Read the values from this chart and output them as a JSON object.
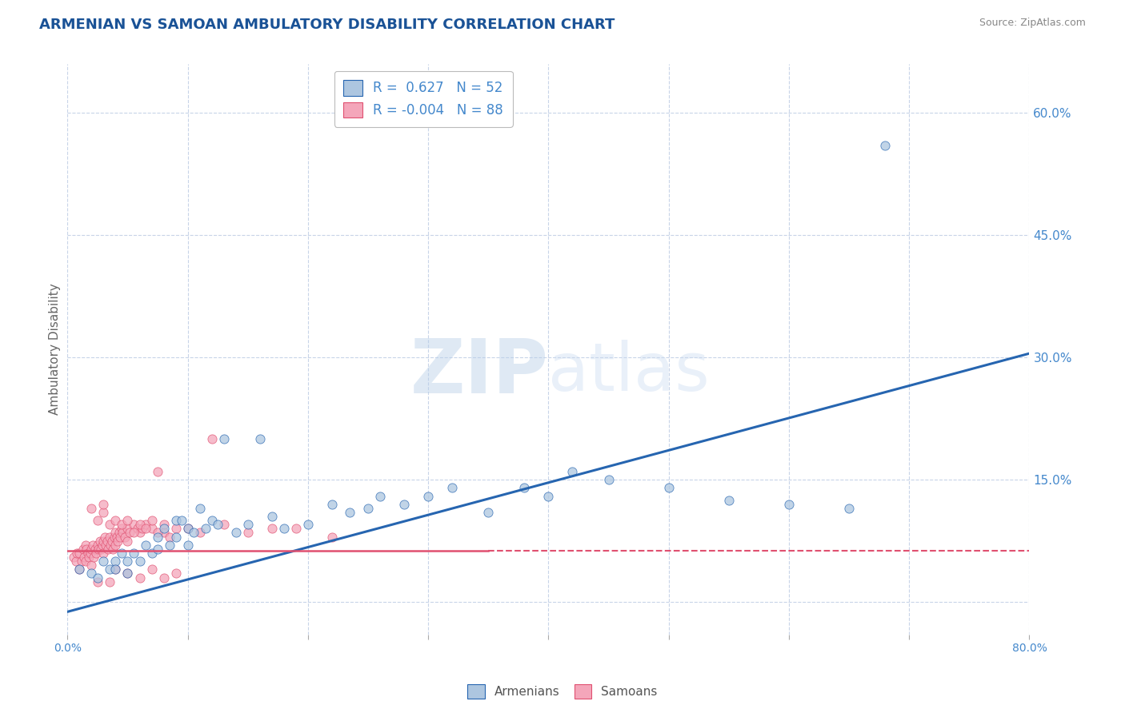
{
  "title": "ARMENIAN VS SAMOAN AMBULATORY DISABILITY CORRELATION CHART",
  "source": "Source: ZipAtlas.com",
  "ylabel": "Ambulatory Disability",
  "xlim": [
    0.0,
    0.8
  ],
  "ylim": [
    -0.04,
    0.66
  ],
  "right_ytick_labels": [
    "60.0%",
    "45.0%",
    "30.0%",
    "15.0%"
  ],
  "right_ytick_values": [
    0.6,
    0.45,
    0.3,
    0.15
  ],
  "xticks": [
    0.0,
    0.1,
    0.2,
    0.3,
    0.4,
    0.5,
    0.6,
    0.7,
    0.8
  ],
  "xtick_labels": [
    "0.0%",
    "",
    "",
    "",
    "",
    "",
    "",
    "",
    "80.0%"
  ],
  "legend_r1": "R =  0.627   N = 52",
  "legend_r2": "R = -0.004   N = 88",
  "armenian_color": "#adc6e0",
  "samoan_color": "#f4a6ba",
  "armenian_line_color": "#2665b0",
  "samoan_line_color": "#e05070",
  "background_color": "#ffffff",
  "grid_color": "#c8d4e8",
  "title_color": "#1a5296",
  "source_color": "#888888",
  "right_axis_color": "#4488cc",
  "watermark_zip": "ZIP",
  "watermark_atlas": "atlas",
  "arm_line_x0": 0.0,
  "arm_line_x1": 0.8,
  "arm_line_y0": -0.012,
  "arm_line_y1": 0.305,
  "sam_line_x0": 0.0,
  "sam_line_x1": 0.35,
  "sam_line_x1_dash": 0.8,
  "sam_line_y": 0.063,
  "armenians_x": [
    0.01,
    0.02,
    0.025,
    0.03,
    0.035,
    0.04,
    0.04,
    0.045,
    0.05,
    0.05,
    0.055,
    0.06,
    0.065,
    0.07,
    0.075,
    0.075,
    0.08,
    0.085,
    0.09,
    0.09,
    0.095,
    0.1,
    0.1,
    0.105,
    0.11,
    0.115,
    0.12,
    0.125,
    0.13,
    0.14,
    0.15,
    0.16,
    0.17,
    0.18,
    0.2,
    0.22,
    0.235,
    0.25,
    0.26,
    0.28,
    0.3,
    0.32,
    0.35,
    0.38,
    0.4,
    0.42,
    0.45,
    0.5,
    0.55,
    0.6,
    0.65,
    0.68
  ],
  "armenians_y": [
    0.04,
    0.035,
    0.03,
    0.05,
    0.04,
    0.05,
    0.04,
    0.06,
    0.035,
    0.05,
    0.06,
    0.05,
    0.07,
    0.06,
    0.08,
    0.065,
    0.09,
    0.07,
    0.1,
    0.08,
    0.1,
    0.09,
    0.07,
    0.085,
    0.115,
    0.09,
    0.1,
    0.095,
    0.2,
    0.085,
    0.095,
    0.2,
    0.105,
    0.09,
    0.095,
    0.12,
    0.11,
    0.115,
    0.13,
    0.12,
    0.13,
    0.14,
    0.11,
    0.14,
    0.13,
    0.16,
    0.15,
    0.14,
    0.125,
    0.12,
    0.115,
    0.56
  ],
  "samoans_x": [
    0.005,
    0.007,
    0.008,
    0.01,
    0.01,
    0.012,
    0.013,
    0.014,
    0.015,
    0.015,
    0.016,
    0.017,
    0.018,
    0.019,
    0.02,
    0.02,
    0.021,
    0.022,
    0.023,
    0.024,
    0.025,
    0.026,
    0.027,
    0.028,
    0.029,
    0.03,
    0.03,
    0.031,
    0.032,
    0.033,
    0.034,
    0.035,
    0.036,
    0.037,
    0.038,
    0.039,
    0.04,
    0.04,
    0.041,
    0.042,
    0.043,
    0.044,
    0.045,
    0.046,
    0.048,
    0.05,
    0.05,
    0.052,
    0.055,
    0.058,
    0.06,
    0.062,
    0.065,
    0.07,
    0.075,
    0.08,
    0.085,
    0.09,
    0.1,
    0.11,
    0.12,
    0.13,
    0.15,
    0.17,
    0.19,
    0.22,
    0.025,
    0.03,
    0.035,
    0.04,
    0.045,
    0.05,
    0.055,
    0.06,
    0.065,
    0.07,
    0.075,
    0.08,
    0.02,
    0.03,
    0.04,
    0.05,
    0.06,
    0.07,
    0.08,
    0.09,
    0.025,
    0.035
  ],
  "samoans_y": [
    0.055,
    0.05,
    0.06,
    0.04,
    0.06,
    0.05,
    0.065,
    0.055,
    0.07,
    0.05,
    0.065,
    0.06,
    0.055,
    0.06,
    0.065,
    0.045,
    0.07,
    0.055,
    0.065,
    0.06,
    0.07,
    0.065,
    0.075,
    0.065,
    0.07,
    0.075,
    0.06,
    0.08,
    0.07,
    0.075,
    0.065,
    0.08,
    0.07,
    0.075,
    0.065,
    0.08,
    0.085,
    0.07,
    0.08,
    0.075,
    0.085,
    0.08,
    0.09,
    0.085,
    0.08,
    0.09,
    0.075,
    0.085,
    0.095,
    0.09,
    0.085,
    0.09,
    0.095,
    0.09,
    0.16,
    0.085,
    0.08,
    0.09,
    0.09,
    0.085,
    0.2,
    0.095,
    0.085,
    0.09,
    0.09,
    0.08,
    0.1,
    0.11,
    0.095,
    0.1,
    0.095,
    0.1,
    0.085,
    0.095,
    0.09,
    0.1,
    0.085,
    0.095,
    0.115,
    0.12,
    0.04,
    0.035,
    0.03,
    0.04,
    0.03,
    0.035,
    0.025,
    0.025
  ]
}
